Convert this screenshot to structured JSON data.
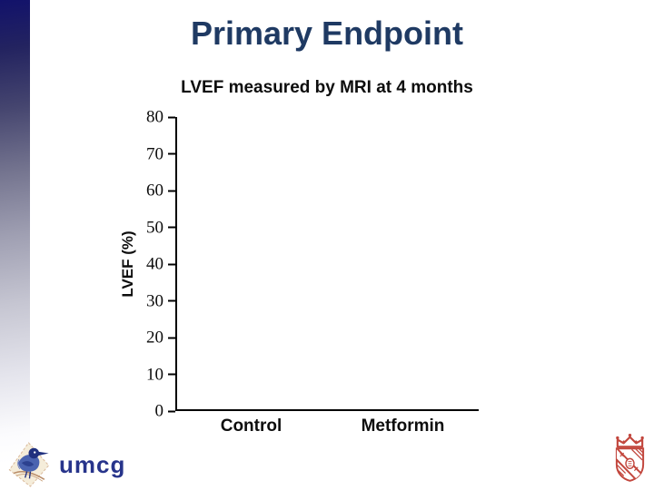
{
  "slide": {
    "title": "Primary Endpoint"
  },
  "chart_data": {
    "type": "bar",
    "title": "LVEF measured by MRI at 4 months",
    "categories": [
      "Control",
      "Metformin"
    ],
    "values": [
      null,
      null
    ],
    "bars_visible": false,
    "xlabel": "",
    "ylabel": "LVEF (%)",
    "ylim": [
      0,
      80
    ],
    "yticks": [
      0,
      10,
      20,
      30,
      40,
      50,
      60,
      70,
      80
    ],
    "grid": false,
    "legend": false
  },
  "logos": {
    "umcg_wordmark": "umcg"
  },
  "colors": {
    "title_navy": "#1f3a63",
    "axis_black": "#000000",
    "sidebar_top": "#12126b",
    "umcg_blue": "#27348b",
    "crest_red": "#c2463d"
  }
}
